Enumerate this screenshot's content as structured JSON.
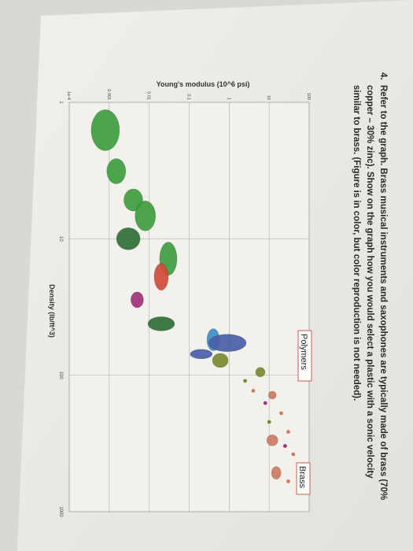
{
  "question": {
    "number": "4.",
    "lines": [
      "Refer to the graph. Brass musical instruments and saxophones are typically made of brass (70%",
      "copper – 30% zinc). Show on the graph how you would select a plastic with a sonic velocity",
      "similar to brass. (Figure is in color, but color reproduction is not needed)."
    ]
  },
  "chart_data": {
    "type": "scatter",
    "title": "",
    "xlabel": "Density (lb/ft^3)",
    "ylabel": "Young's modulus (10^6 psi)",
    "x_scale": "log",
    "y_scale": "log",
    "xlim": [
      1,
      1000
    ],
    "ylim": [
      0.0001,
      100
    ],
    "x_ticks": [
      "1",
      "10",
      "100",
      "1000"
    ],
    "y_ticks": [
      "1e-4",
      "0.001",
      "0.01",
      "0.1",
      "1",
      "10",
      "100"
    ],
    "grid": true,
    "annotations": [
      "Polymers",
      "Brass"
    ],
    "colors": {
      "paper": "#ecebe6",
      "foam": "#3f9e3f",
      "foam_dark": "#2f6f39",
      "elastomer": "#d24b3a",
      "polymer": "#4a5fa8",
      "polymer_light": "#3d8fcf",
      "composite": "#7b8b2e",
      "ceramic": "#a2307a",
      "metal": "#d07a62"
    }
  }
}
